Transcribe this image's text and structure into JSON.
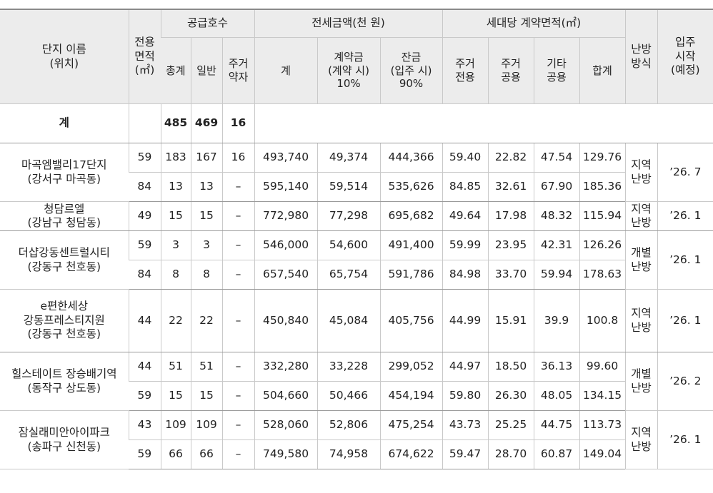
{
  "headers": {
    "complex": "단지 이름\n(위치)",
    "area": "전용\n면적\n(㎡)",
    "supply": "공급호수",
    "supply_total": "총계",
    "supply_general": "일반",
    "supply_vulnerable": "주거\n약자",
    "deposit": "전세금액(천 원)",
    "deposit_total": "계",
    "deposit_contract": "계약금\n(계약 시)\n10%",
    "deposit_balance": "잔금\n(입주 시)\n90%",
    "contract_area": "세대당 계약면적(㎡)",
    "area_exclusive": "주거\n전용",
    "area_common": "주거\n공용",
    "area_other": "기타\n공용",
    "area_sum": "합계",
    "heating": "난방\n방식",
    "move_in": "입주\n시작\n(예정)"
  },
  "total_row": {
    "label": "계",
    "supply_total": "485",
    "supply_general": "469",
    "supply_vulnerable": "16"
  },
  "complexes": [
    {
      "name": "마곡엠밸리17단지\n(강서구 마곡동)",
      "heating": "지역\n난방",
      "move_in": "’26. 7",
      "rows": [
        {
          "area": "59",
          "total": "183",
          "general": "167",
          "vulnerable": "16",
          "deposit_total": "493,740",
          "contract": "49,374",
          "balance": "444,366",
          "exclusive": "59.40",
          "common": "22.82",
          "other": "47.54",
          "sum": "129.76"
        },
        {
          "area": "84",
          "total": "13",
          "general": "13",
          "vulnerable": "–",
          "deposit_total": "595,140",
          "contract": "59,514",
          "balance": "535,626",
          "exclusive": "84.85",
          "common": "32.61",
          "other": "67.90",
          "sum": "185.36"
        }
      ]
    },
    {
      "name": "청담르엘\n(강남구 청담동)",
      "heating": "지역\n난방",
      "move_in": "’26. 1",
      "rows": [
        {
          "area": "49",
          "total": "15",
          "general": "15",
          "vulnerable": "–",
          "deposit_total": "772,980",
          "contract": "77,298",
          "balance": "695,682",
          "exclusive": "49.64",
          "common": "17.98",
          "other": "48.32",
          "sum": "115.94"
        }
      ]
    },
    {
      "name": "더샵강동센트럴시티\n(강동구 천호동)",
      "heating": "개별\n난방",
      "move_in": "’26. 1",
      "rows": [
        {
          "area": "59",
          "total": "3",
          "general": "3",
          "vulnerable": "–",
          "deposit_total": "546,000",
          "contract": "54,600",
          "balance": "491,400",
          "exclusive": "59.99",
          "common": "23.95",
          "other": "42.31",
          "sum": "126.26"
        },
        {
          "area": "84",
          "total": "8",
          "general": "8",
          "vulnerable": "–",
          "deposit_total": "657,540",
          "contract": "65,754",
          "balance": "591,786",
          "exclusive": "84.98",
          "common": "33.70",
          "other": "59.94",
          "sum": "178.63"
        }
      ]
    },
    {
      "name": "e편한세상\n강동프레스티지원\n(강동구 천호동)",
      "heating": "지역\n난방",
      "move_in": "’26. 1",
      "rows": [
        {
          "area": "44",
          "total": "22",
          "general": "22",
          "vulnerable": "–",
          "deposit_total": "450,840",
          "contract": "45,084",
          "balance": "405,756",
          "exclusive": "44.99",
          "common": "15.91",
          "other": "39.9",
          "sum": "100.8"
        }
      ]
    },
    {
      "name": "힐스테이트 장승배기역\n(동작구 상도동)",
      "heating": "개별\n난방",
      "move_in": "’26. 2",
      "rows": [
        {
          "area": "44",
          "total": "51",
          "general": "51",
          "vulnerable": "–",
          "deposit_total": "332,280",
          "contract": "33,228",
          "balance": "299,052",
          "exclusive": "44.97",
          "common": "18.50",
          "other": "36.13",
          "sum": "99.60"
        },
        {
          "area": "59",
          "total": "15",
          "general": "15",
          "vulnerable": "–",
          "deposit_total": "504,660",
          "contract": "50,466",
          "balance": "454,194",
          "exclusive": "59.80",
          "common": "26.30",
          "other": "48.05",
          "sum": "134.15"
        }
      ]
    },
    {
      "name": "잠실래미안아이파크\n(송파구 신천동)",
      "heating": "지역\n난방",
      "move_in": "’26. 1",
      "rows": [
        {
          "area": "43",
          "total": "109",
          "general": "109",
          "vulnerable": "–",
          "deposit_total": "528,060",
          "contract": "52,806",
          "balance": "475,254",
          "exclusive": "43.73",
          "common": "25.25",
          "other": "44.75",
          "sum": "113.73"
        },
        {
          "area": "59",
          "total": "66",
          "general": "66",
          "vulnerable": "–",
          "deposit_total": "749,580",
          "contract": "74,958",
          "balance": "674,622",
          "exclusive": "59.47",
          "common": "28.70",
          "other": "60.87",
          "sum": "149.04"
        }
      ]
    }
  ]
}
